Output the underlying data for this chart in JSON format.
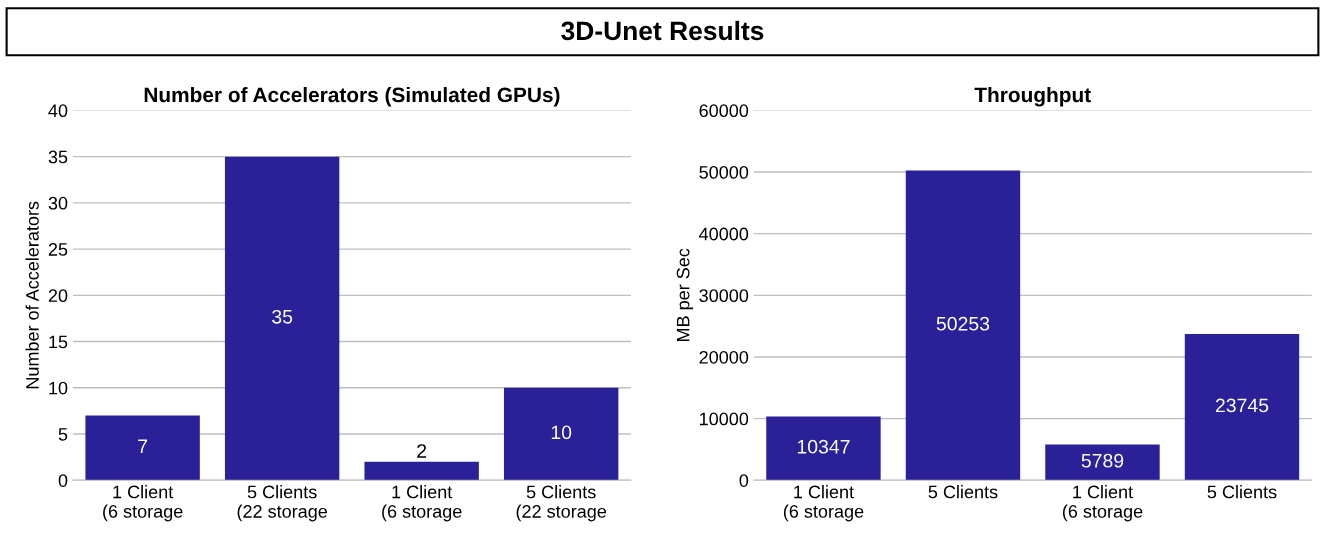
{
  "chart_data": [
    {
      "type": "bar",
      "title": "Number of Accelerators (Simulated GPUs)",
      "ylabel": "Number of Accelerators",
      "annotations": [
        "3D-Unet Results"
      ],
      "categories": [
        "1 Client\n(6 storage",
        "5 Clients\n(22 storage",
        "1 Client\n(6 storage",
        "5 Clients\n(22 storage"
      ],
      "values": [
        7,
        35,
        2,
        10
      ],
      "color": "#2a2199",
      "ylim": [
        0,
        40
      ],
      "yticks": [
        0,
        5,
        10,
        15,
        20,
        25,
        30,
        35,
        40
      ],
      "grid": "y",
      "data_labels": true
    },
    {
      "type": "bar",
      "title": "Throughput",
      "ylabel": "MB per Sec",
      "categories": [
        "1 Client\n(6 storage",
        "5 Clients",
        "1 Client\n(6 storage",
        "5 Clients"
      ],
      "values": [
        10347,
        50253,
        5789,
        23745
      ],
      "color": "#2a2199",
      "ylim": [
        0,
        60000
      ],
      "yticks": [
        0,
        10000,
        20000,
        30000,
        40000,
        50000,
        60000
      ],
      "grid": "y",
      "data_labels": true
    }
  ]
}
